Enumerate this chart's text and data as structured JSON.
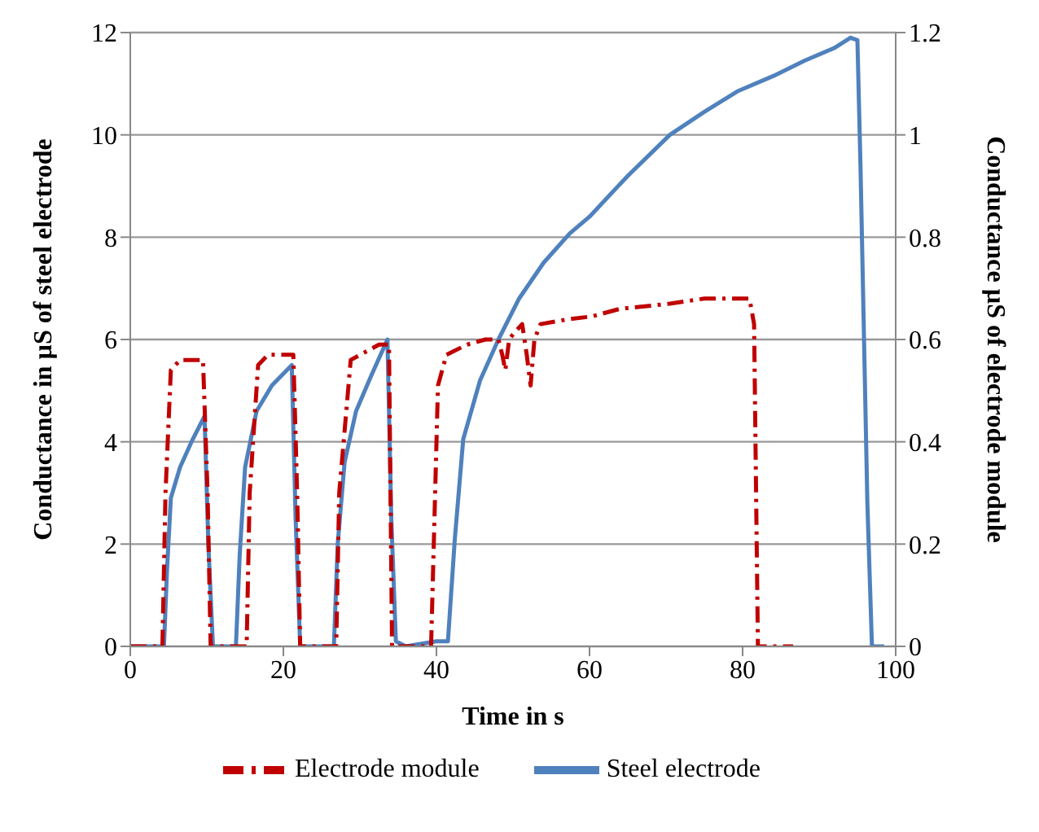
{
  "chart_data": {
    "type": "line",
    "xlabel": "Time in s",
    "ylabel": "Conductance in µS of steel electrode",
    "y2label": "Conductance µS of electrode module",
    "xlim": [
      0,
      100
    ],
    "xticks": [
      0,
      20,
      40,
      60,
      80,
      100
    ],
    "ylim": [
      0,
      12
    ],
    "yticks": [
      0,
      2,
      4,
      6,
      8,
      10,
      12
    ],
    "y2lim": [
      0,
      1.2
    ],
    "y2ticks": [
      0,
      0.2,
      0.4,
      0.6,
      0.8,
      1,
      1.2
    ],
    "grid": "y",
    "legend": "bottom",
    "marker": "none",
    "series": [
      {
        "name": "Steel electrode",
        "color": "#4f81bd",
        "line_style": "solid",
        "x": [
          0,
          4.4,
          4.8,
          5.3,
          6.5,
          8,
          9.7,
          10.2,
          10.8,
          13.8,
          14.3,
          15,
          16.5,
          18.5,
          21.1,
          21.6,
          22.2,
          26.6,
          27.1,
          28,
          29.5,
          31.5,
          33.6,
          34.1,
          34.7,
          36,
          40,
          41.5,
          42.4,
          43.5,
          45.7,
          48.1,
          50.8,
          54,
          57.4,
          60,
          65,
          70.5,
          75,
          79.3,
          84,
          88.1,
          92,
          94.1,
          95,
          95.4,
          96.3,
          96.9,
          98.5
        ],
        "values": [
          0,
          0,
          1.5,
          2.9,
          3.5,
          4,
          4.5,
          2,
          0,
          0,
          1.8,
          3.5,
          4.6,
          5.1,
          5.5,
          2.5,
          0,
          0,
          2,
          3.6,
          4.6,
          5.3,
          6,
          2.5,
          0.1,
          0,
          0.1,
          0.1,
          2.1,
          4.05,
          5.2,
          6,
          6.8,
          7.5,
          8.07,
          8.4,
          9.2,
          10,
          10.45,
          10.85,
          11.15,
          11.45,
          11.7,
          11.9,
          11.85,
          9.4,
          2.8,
          0,
          0
        ]
      },
      {
        "name": "Electrode module",
        "color": "#c00000",
        "line_style": "dashdot",
        "axis": "y2",
        "x": [
          0,
          4.2,
          4.6,
          5.3,
          6.5,
          9.5,
          10.1,
          10.5,
          15.2,
          15.6,
          16.7,
          18,
          21.3,
          21.8,
          22.2,
          26.9,
          27.3,
          28.8,
          32.5,
          33.8,
          34.2,
          39.3,
          40.2,
          41.3,
          44,
          46.4,
          48.1,
          48.6,
          49,
          49.5,
          50,
          51.2,
          51.8,
          52.3,
          52.8,
          53.6,
          57.4,
          60.3,
          64,
          70.5,
          75,
          80.9,
          81.5,
          82,
          86.6
        ],
        "values": [
          0,
          0,
          0.3,
          0.54,
          0.56,
          0.56,
          0.3,
          0,
          0,
          0.3,
          0.55,
          0.57,
          0.57,
          0.3,
          0,
          0,
          0.3,
          0.56,
          0.59,
          0.59,
          0,
          0,
          0.51,
          0.57,
          0.59,
          0.6,
          0.6,
          0.57,
          0.54,
          0.6,
          0.61,
          0.63,
          0.57,
          0.51,
          0.6,
          0.63,
          0.64,
          0.645,
          0.66,
          0.67,
          0.68,
          0.68,
          0.63,
          0,
          0
        ]
      }
    ]
  }
}
